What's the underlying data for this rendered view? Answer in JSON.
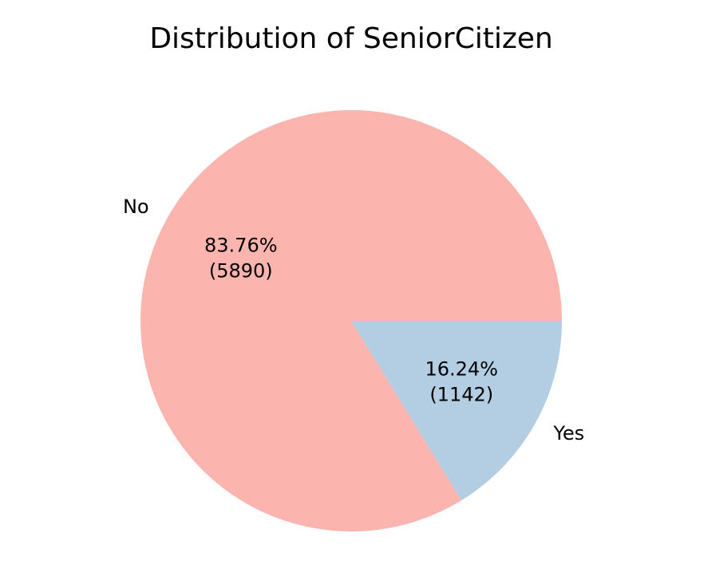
{
  "chart_data": {
    "type": "pie",
    "title": "Distribution of SeniorCitizen",
    "categories": [
      "No",
      "Yes"
    ],
    "values": [
      5890,
      1142
    ],
    "value_labels": [
      [
        "83.76%",
        "(5890)"
      ],
      [
        "16.24%",
        "(1142)"
      ]
    ],
    "colors": [
      "#fbb4ae",
      "#b3cde3"
    ],
    "start_angle": 0
  }
}
